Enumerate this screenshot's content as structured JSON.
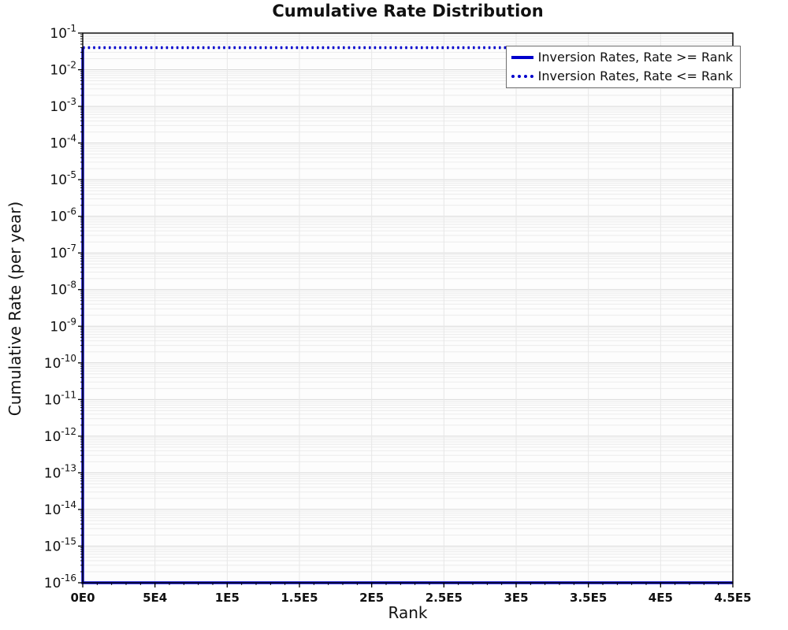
{
  "chart_data": {
    "type": "line",
    "title": "Cumulative Rate Distribution",
    "xlabel": "Rank",
    "ylabel": "Cumulative Rate (per year)",
    "xlim": [
      0,
      450000
    ],
    "ylim": [
      1e-16,
      0.1
    ],
    "yscale": "log",
    "x_ticks": [
      {
        "value": 0,
        "label": "0E0"
      },
      {
        "value": 50000,
        "label": "5E4"
      },
      {
        "value": 100000,
        "label": "1E5"
      },
      {
        "value": 150000,
        "label": "1.5E5"
      },
      {
        "value": 200000,
        "label": "2E5"
      },
      {
        "value": 250000,
        "label": "2.5E5"
      },
      {
        "value": 300000,
        "label": "3E5"
      },
      {
        "value": 350000,
        "label": "3.5E5"
      },
      {
        "value": 400000,
        "label": "4E5"
      },
      {
        "value": 450000,
        "label": "4.5E5"
      }
    ],
    "x_minor_step": 10000,
    "y_tick_exponents": [
      -1,
      -2,
      -3,
      -4,
      -5,
      -6,
      -7,
      -8,
      -9,
      -10,
      -11,
      -12,
      -13,
      -14,
      -15,
      -16
    ],
    "grid": "on",
    "legend_position": "top-right",
    "series": [
      {
        "name": "Inversion Rates, Rate >= Rank",
        "style": "solid",
        "color": "#0000CC",
        "points": [
          [
            0,
            0.04
          ],
          [
            0,
            1e-16
          ],
          [
            450000,
            1e-16
          ]
        ]
      },
      {
        "name": "Inversion Rates, Rate <= Rank",
        "style": "dotted",
        "color": "#0000CC",
        "points": [
          [
            0,
            0.04
          ],
          [
            450000,
            0.04
          ]
        ]
      }
    ]
  }
}
